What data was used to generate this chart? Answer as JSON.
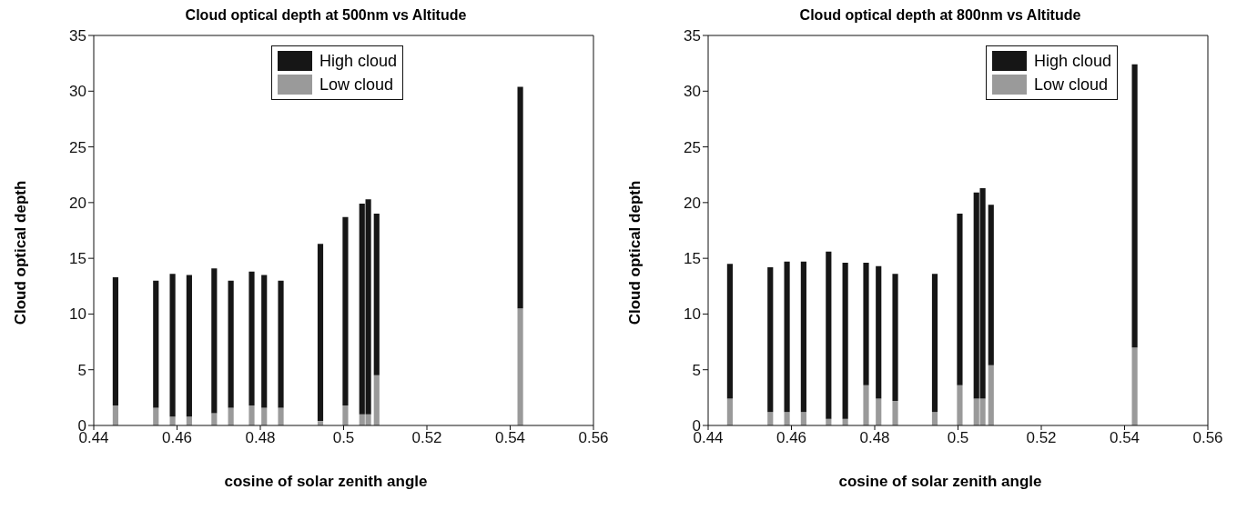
{
  "chart_data": [
    {
      "type": "bar",
      "stacked": true,
      "title": "Cloud optical depth at 500nm vs Altitude",
      "xlabel": "cosine of solar zenith angle",
      "ylabel": "Cloud optical depth",
      "x": [
        0.4453,
        0.455,
        0.459,
        0.463,
        0.469,
        0.473,
        0.478,
        0.481,
        0.485,
        0.4945,
        0.5005,
        0.5045,
        0.506,
        0.508,
        0.5425
      ],
      "series": [
        {
          "name": "Low cloud",
          "color": "#9a9a9a",
          "values": [
            1.8,
            1.6,
            0.8,
            0.8,
            1.1,
            1.6,
            1.8,
            1.6,
            1.6,
            0.4,
            1.8,
            1.0,
            1.0,
            4.5,
            10.5
          ]
        },
        {
          "name": "High cloud",
          "color": "#161616",
          "values": [
            11.5,
            11.4,
            12.8,
            12.7,
            13.0,
            11.4,
            12.0,
            11.9,
            11.4,
            15.9,
            16.9,
            18.9,
            19.3,
            14.5,
            19.9
          ]
        }
      ],
      "xlim": [
        0.44,
        0.56
      ],
      "xticks": [
        0.44,
        0.46,
        0.48,
        0.5,
        0.52,
        0.54,
        0.56
      ],
      "ylim": [
        0,
        35
      ],
      "yticks": [
        0,
        5,
        10,
        15,
        20,
        25,
        30,
        35
      ],
      "legend": "top"
    },
    {
      "type": "bar",
      "stacked": true,
      "title": "Cloud optical depth at 800nm vs Altitude",
      "xlabel": "cosine of solar zenith angle",
      "ylabel": "Cloud optical depth",
      "x": [
        0.4453,
        0.455,
        0.459,
        0.463,
        0.469,
        0.473,
        0.478,
        0.481,
        0.485,
        0.4945,
        0.5005,
        0.5045,
        0.506,
        0.508,
        0.5425
      ],
      "series": [
        {
          "name": "Low cloud",
          "color": "#9a9a9a",
          "values": [
            2.4,
            1.2,
            1.2,
            1.2,
            0.6,
            0.6,
            3.6,
            2.4,
            2.2,
            1.2,
            3.6,
            2.4,
            2.4,
            5.4,
            7.0
          ]
        },
        {
          "name": "High cloud",
          "color": "#161616",
          "values": [
            12.1,
            13.0,
            13.5,
            13.5,
            15.0,
            14.0,
            11.0,
            11.9,
            11.4,
            12.4,
            15.4,
            18.5,
            18.9,
            14.4,
            25.4
          ]
        }
      ],
      "xlim": [
        0.44,
        0.56
      ],
      "xticks": [
        0.44,
        0.46,
        0.48,
        0.5,
        0.52,
        0.54,
        0.56
      ],
      "ylim": [
        0,
        35
      ],
      "yticks": [
        0,
        5,
        10,
        15,
        20,
        25,
        30,
        35
      ],
      "legend": "top right"
    }
  ]
}
